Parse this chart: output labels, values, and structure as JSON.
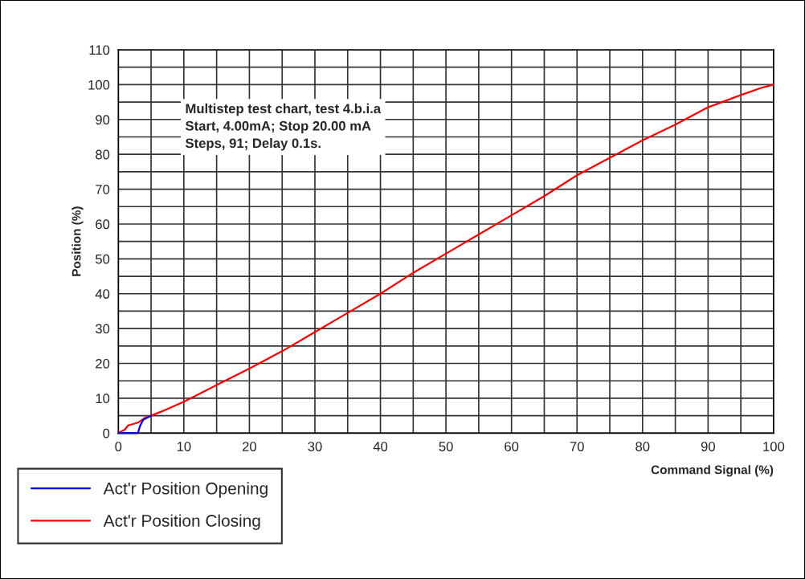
{
  "chart_data": {
    "type": "line",
    "xlabel": "Command Signal (%)",
    "ylabel": "Position (%)",
    "annotations": [
      "Multistep test chart, test 4.b.i.a\nStart, 4.00mA; Stop 20.00 mA\nSteps, 91; Delay 0.1s."
    ],
    "xlim": [
      0,
      100
    ],
    "ylim": [
      0,
      110
    ],
    "xticks": [
      0,
      {
        "value": 5,
        "label": null
      },
      10,
      {
        "value": 15,
        "label": null
      },
      20,
      {
        "value": 25,
        "label": null
      },
      30,
      {
        "value": 35,
        "label": null
      },
      40,
      {
        "value": 45,
        "label": null
      },
      50,
      {
        "value": 55,
        "label": null
      },
      60,
      {
        "value": 65,
        "label": null
      },
      70,
      {
        "value": 75,
        "label": null
      },
      80,
      {
        "value": 85,
        "label": null
      },
      90,
      {
        "value": 95,
        "label": null
      },
      100
    ],
    "yticks": [
      0,
      {
        "value": 5,
        "label": null
      },
      10,
      {
        "value": 15,
        "label": null
      },
      20,
      {
        "value": 25,
        "label": null
      },
      30,
      {
        "value": 35,
        "label": null
      },
      40,
      {
        "value": 45,
        "label": null
      },
      50,
      {
        "value": 55,
        "label": null
      },
      60,
      {
        "value": 65,
        "label": null
      },
      70,
      {
        "value": 75,
        "label": null
      },
      80,
      {
        "value": 85,
        "label": null
      },
      90,
      {
        "value": 95,
        "label": null
      },
      100,
      {
        "value": 105,
        "label": null
      },
      110
    ],
    "grid": true,
    "legend": "bottom left",
    "marker": "none",
    "line_style": "solid",
    "series": [
      {
        "name": "Act'r Position Opening",
        "color": "#0000ff",
        "x": [
          0,
          1,
          2,
          3,
          3.3,
          3.8,
          5
        ],
        "values": [
          0,
          0,
          0,
          0,
          2,
          3.8,
          5
        ]
      },
      {
        "name": "Act'r Position Closing",
        "color": "#ff0000",
        "x": [
          0,
          1,
          1.5,
          3,
          4,
          5,
          7,
          10,
          15,
          20,
          25,
          30,
          35,
          40,
          45,
          50,
          55,
          60,
          65,
          70,
          75,
          80,
          85,
          90,
          95,
          98,
          100
        ],
        "values": [
          0,
          1,
          2.2,
          3,
          4.3,
          5,
          6.5,
          9,
          13.8,
          18.5,
          23.5,
          29,
          34.5,
          40,
          46,
          51.5,
          57,
          62.5,
          68,
          74,
          79,
          84,
          88.5,
          93.5,
          97,
          99,
          100
        ]
      }
    ]
  }
}
